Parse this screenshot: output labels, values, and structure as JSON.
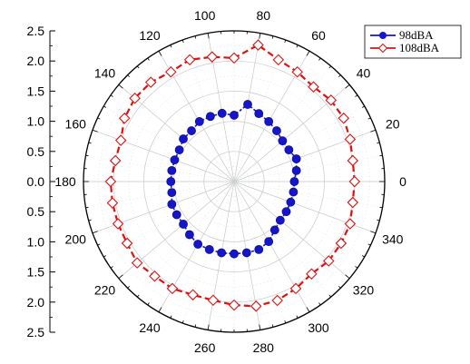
{
  "chart_data": {
    "type": "scatter",
    "coordinate_system": "polar",
    "angle_unit": "degrees",
    "angle_zero": "right",
    "angle_direction": "counterclockwise",
    "angle_ticks": [
      0,
      20,
      40,
      60,
      80,
      100,
      120,
      140,
      160,
      180,
      200,
      220,
      240,
      260,
      280,
      300,
      320,
      340
    ],
    "radial_axis": {
      "range": [
        0,
        2.5
      ],
      "ticks": [
        "2.5",
        "2.0",
        "1.5",
        "1.0",
        "0.5",
        "0.0",
        "0.5",
        "1.0",
        "1.5",
        "2.0",
        "2.5"
      ]
    },
    "grid": true,
    "legend": {
      "position": "top-right",
      "entries": [
        "98dBA",
        "108dBA"
      ]
    },
    "series": [
      {
        "name": "98dBA",
        "color": "#1515cc",
        "marker": "filled-circle",
        "angles": [
          0,
          10,
          20,
          30,
          40,
          50,
          60,
          70,
          80,
          90,
          100,
          110,
          120,
          130,
          140,
          150,
          160,
          170,
          180,
          190,
          200,
          210,
          220,
          230,
          240,
          250,
          260,
          270,
          280,
          290,
          300,
          310,
          320,
          330,
          340,
          350
        ],
        "radii": [
          1.0,
          1.05,
          1.1,
          1.05,
          1.05,
          1.1,
          1.15,
          1.2,
          1.3,
          1.1,
          1.15,
          1.15,
          1.15,
          1.1,
          1.1,
          1.05,
          1.05,
          1.05,
          1.05,
          1.05,
          1.1,
          1.1,
          1.1,
          1.15,
          1.2,
          1.2,
          1.2,
          1.2,
          1.2,
          1.2,
          1.15,
          1.05,
          1.0,
          1.0,
          1.0,
          1.0
        ]
      },
      {
        "name": "108dBA",
        "color": "#dd1111",
        "marker": "open-diamond",
        "angles": [
          0,
          10,
          20,
          30,
          40,
          50,
          60,
          70,
          80,
          90,
          100,
          110,
          120,
          130,
          140,
          150,
          160,
          170,
          180,
          190,
          200,
          210,
          220,
          230,
          240,
          250,
          260,
          270,
          280,
          290,
          300,
          310,
          320,
          330,
          340,
          350
        ],
        "radii": [
          2.0,
          2.0,
          2.05,
          2.1,
          2.1,
          2.05,
          2.1,
          2.15,
          2.3,
          2.05,
          2.1,
          2.15,
          2.1,
          2.15,
          2.15,
          2.1,
          2.0,
          2.0,
          2.05,
          2.05,
          2.05,
          2.05,
          2.1,
          2.05,
          2.05,
          2.0,
          2.0,
          2.05,
          2.1,
          2.1,
          2.05,
          2.0,
          2.05,
          2.05,
          2.05,
          2.0
        ]
      }
    ]
  }
}
